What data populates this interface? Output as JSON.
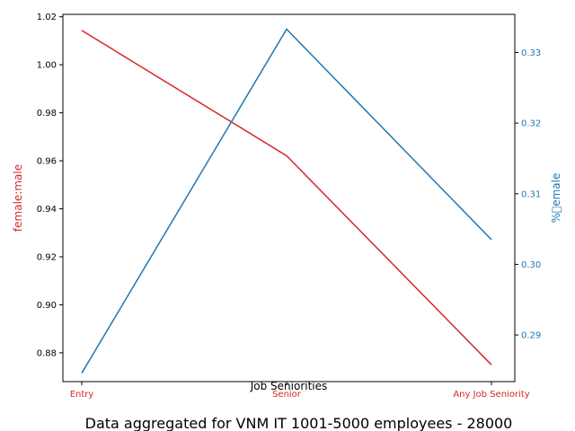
{
  "chart_data": {
    "type": "line",
    "categories": [
      "Entry",
      "Senior",
      "Any Job Seniority"
    ],
    "xlabel": "Job Seniorities",
    "caption": "Data aggregated for VNM IT 1001-5000 employees - 28000",
    "left_axis": {
      "label": "female:male",
      "color": "#d62728",
      "ylim": [
        0.868,
        1.021
      ],
      "ticks": [
        0.88,
        0.9,
        0.92,
        0.94,
        0.96,
        0.98,
        1.0,
        1.02
      ],
      "tick_labels": [
        "0.88",
        "0.90",
        "0.92",
        "0.94",
        "0.96",
        "0.98",
        "1.00",
        "1.02"
      ]
    },
    "right_axis": {
      "label": "%\u0000emale",
      "color": "#1f77b4",
      "ylim": [
        0.2834,
        0.3354
      ],
      "ticks": [
        0.29,
        0.3,
        0.31,
        0.32,
        0.33
      ],
      "tick_labels": [
        "0.29",
        "0.30",
        "0.31",
        "0.32",
        "0.33"
      ]
    },
    "series": [
      {
        "axis": "left",
        "color": "#d62728",
        "values": [
          1.0143,
          0.9621,
          0.875
        ]
      },
      {
        "axis": "right",
        "color": "#1f77b4",
        "values": [
          0.2846,
          0.3333,
          0.3035
        ]
      }
    ],
    "grid": false
  }
}
